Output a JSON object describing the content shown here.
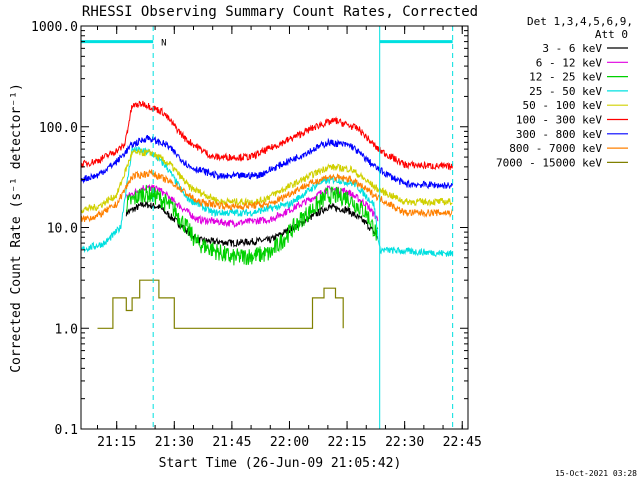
{
  "chart_data": {
    "type": "line",
    "title": "RHESSI Observing Summary Count Rates, Corrected",
    "xlabel": "Start Time (26-Jun-09 21:05:42)",
    "ylabel": "Corrected Count Rate (s⁻¹ detector⁻¹)",
    "y_scale": "log",
    "ylim": [
      0.1,
      1000
    ],
    "xlim": [
      "21:05:42",
      "22:46:30"
    ],
    "x_ticks": [
      "21:15",
      "21:30",
      "21:45",
      "22:00",
      "22:15",
      "22:30",
      "22:45"
    ],
    "y_ticks": [
      "0.1",
      "1.0",
      "10.0",
      "100.0",
      "1000.0"
    ],
    "grid": false,
    "legend_header": [
      "Det 1,3,4,5,6,9,",
      "Att 0"
    ],
    "legend_placement": "right",
    "timestamp": "15-Oct-2021 03:28",
    "night_label": "N",
    "flags": {
      "night_intervals": [
        [
          "21:05:42",
          "21:24:30"
        ],
        [
          "22:23:30",
          "22:42:30"
        ]
      ],
      "night_level": 700
    },
    "series": [
      {
        "name": "3 - 6 keV",
        "color": "#000000",
        "points": [
          [
            "21:17:30",
            14
          ],
          [
            "21:22:00",
            17
          ],
          [
            "21:26:00",
            16
          ],
          [
            "21:30:00",
            12
          ],
          [
            "21:36:00",
            7.5
          ],
          [
            "21:45:00",
            7
          ],
          [
            "21:55:00",
            7.5
          ],
          [
            "22:03:00",
            11
          ],
          [
            "22:10:00",
            16
          ],
          [
            "22:15:00",
            15
          ],
          [
            "22:20:00",
            11
          ],
          [
            "22:23:00",
            8
          ]
        ]
      },
      {
        "name": "6 - 12 keV",
        "color": "#e000e0",
        "points": [
          [
            "21:17:30",
            20
          ],
          [
            "21:22:00",
            25
          ],
          [
            "21:26:00",
            24
          ],
          [
            "21:30:00",
            18
          ],
          [
            "21:36:00",
            12
          ],
          [
            "21:45:00",
            11
          ],
          [
            "21:55:00",
            12
          ],
          [
            "22:03:00",
            17
          ],
          [
            "22:10:00",
            24
          ],
          [
            "22:15:00",
            23
          ],
          [
            "22:20:00",
            17
          ],
          [
            "22:23:00",
            12
          ]
        ]
      },
      {
        "name": "12 - 25 keV",
        "color": "#00d000",
        "points": [
          [
            "21:17:30",
            17
          ],
          [
            "21:22:00",
            22
          ],
          [
            "21:26:00",
            20
          ],
          [
            "21:30:00",
            15
          ],
          [
            "21:36:00",
            7
          ],
          [
            "21:45:00",
            5
          ],
          [
            "21:55:00",
            5.5
          ],
          [
            "22:03:00",
            12
          ],
          [
            "22:10:00",
            21
          ],
          [
            "22:15:00",
            20
          ],
          [
            "22:20:00",
            14
          ],
          [
            "22:23:00",
            8
          ]
        ]
      },
      {
        "name": "25 - 50 keV",
        "color": "#00e0e0",
        "points": [
          [
            "21:05:42",
            6
          ],
          [
            "21:12:00",
            7
          ],
          [
            "21:16:00",
            10
          ],
          [
            "21:19:00",
            60
          ],
          [
            "21:24:00",
            55
          ],
          [
            "21:28:00",
            40
          ],
          [
            "21:33:00",
            20
          ],
          [
            "21:40:00",
            14
          ],
          [
            "21:50:00",
            14
          ],
          [
            "22:00:00",
            17
          ],
          [
            "22:08:00",
            28
          ],
          [
            "22:12:00",
            30
          ],
          [
            "22:17:00",
            27
          ],
          [
            "22:22:00",
            17
          ],
          [
            "22:23:30",
            6
          ],
          [
            "22:42:30",
            5.5
          ]
        ]
      },
      {
        "name": "50 - 100 keV",
        "color": "#d0d000",
        "points": [
          [
            "21:05:42",
            15
          ],
          [
            "21:10:00",
            16
          ],
          [
            "21:15:00",
            21
          ],
          [
            "21:19:00",
            55
          ],
          [
            "21:24:00",
            55
          ],
          [
            "21:29:00",
            42
          ],
          [
            "21:34:00",
            25
          ],
          [
            "21:42:00",
            18
          ],
          [
            "21:52:00",
            18
          ],
          [
            "22:02:00",
            28
          ],
          [
            "22:10:00",
            40
          ],
          [
            "22:16:00",
            38
          ],
          [
            "22:23:00",
            24
          ],
          [
            "22:30:00",
            18
          ],
          [
            "22:42:30",
            18
          ]
        ]
      },
      {
        "name": "100 - 300 keV",
        "color": "#ff0000",
        "points": [
          [
            "21:05:42",
            42
          ],
          [
            "21:10:00",
            46
          ],
          [
            "21:15:00",
            58
          ],
          [
            "21:17:00",
            65
          ],
          [
            "21:19:00",
            160
          ],
          [
            "21:22:00",
            170
          ],
          [
            "21:27:00",
            140
          ],
          [
            "21:33:00",
            75
          ],
          [
            "21:40:00",
            50
          ],
          [
            "21:50:00",
            50
          ],
          [
            "22:00:00",
            75
          ],
          [
            "22:08:00",
            105
          ],
          [
            "22:12:00",
            115
          ],
          [
            "22:18:00",
            95
          ],
          [
            "22:23:00",
            60
          ],
          [
            "22:30:00",
            42
          ],
          [
            "22:42:30",
            40
          ]
        ]
      },
      {
        "name": "300 - 800 keV",
        "color": "#0000ff",
        "points": [
          [
            "21:05:42",
            30
          ],
          [
            "21:10:00",
            33
          ],
          [
            "21:15:00",
            45
          ],
          [
            "21:19:00",
            66
          ],
          [
            "21:23:00",
            78
          ],
          [
            "21:28:00",
            66
          ],
          [
            "21:34:00",
            40
          ],
          [
            "21:42:00",
            32
          ],
          [
            "21:52:00",
            33
          ],
          [
            "22:02:00",
            50
          ],
          [
            "22:10:00",
            70
          ],
          [
            "22:16:00",
            65
          ],
          [
            "22:23:00",
            38
          ],
          [
            "22:30:00",
            27
          ],
          [
            "22:42:30",
            26
          ]
        ]
      },
      {
        "name": "800 - 7000 keV",
        "color": "#ff8000",
        "points": [
          [
            "21:05:42",
            12
          ],
          [
            "21:10:00",
            13
          ],
          [
            "21:15:00",
            17
          ],
          [
            "21:19:00",
            32
          ],
          [
            "21:24:00",
            35
          ],
          [
            "21:30:00",
            27
          ],
          [
            "21:36:00",
            18
          ],
          [
            "21:45:00",
            16
          ],
          [
            "21:55:00",
            17
          ],
          [
            "22:03:00",
            25
          ],
          [
            "22:10:00",
            32
          ],
          [
            "22:16:00",
            30
          ],
          [
            "22:23:00",
            20
          ],
          [
            "22:30:00",
            14
          ],
          [
            "22:42:30",
            14
          ]
        ]
      },
      {
        "name": "7000 - 15000 keV",
        "color": "#808000",
        "points": [
          [
            "21:10:00",
            1
          ],
          [
            "21:13:00",
            1
          ],
          [
            "21:14:00",
            2
          ],
          [
            "21:16:00",
            2
          ],
          [
            "21:17:30",
            1.5
          ],
          [
            "21:19:00",
            2
          ],
          [
            "21:21:00",
            3
          ],
          [
            "21:24:00",
            3
          ],
          [
            "21:26:00",
            2
          ],
          [
            "21:29:00",
            2
          ],
          [
            "21:30:00",
            1
          ],
          [
            "22:05:00",
            1
          ],
          [
            "22:06:00",
            2
          ],
          [
            "22:09:00",
            2.5
          ],
          [
            "22:12:00",
            2
          ],
          [
            "22:14:00",
            1
          ]
        ]
      }
    ]
  }
}
